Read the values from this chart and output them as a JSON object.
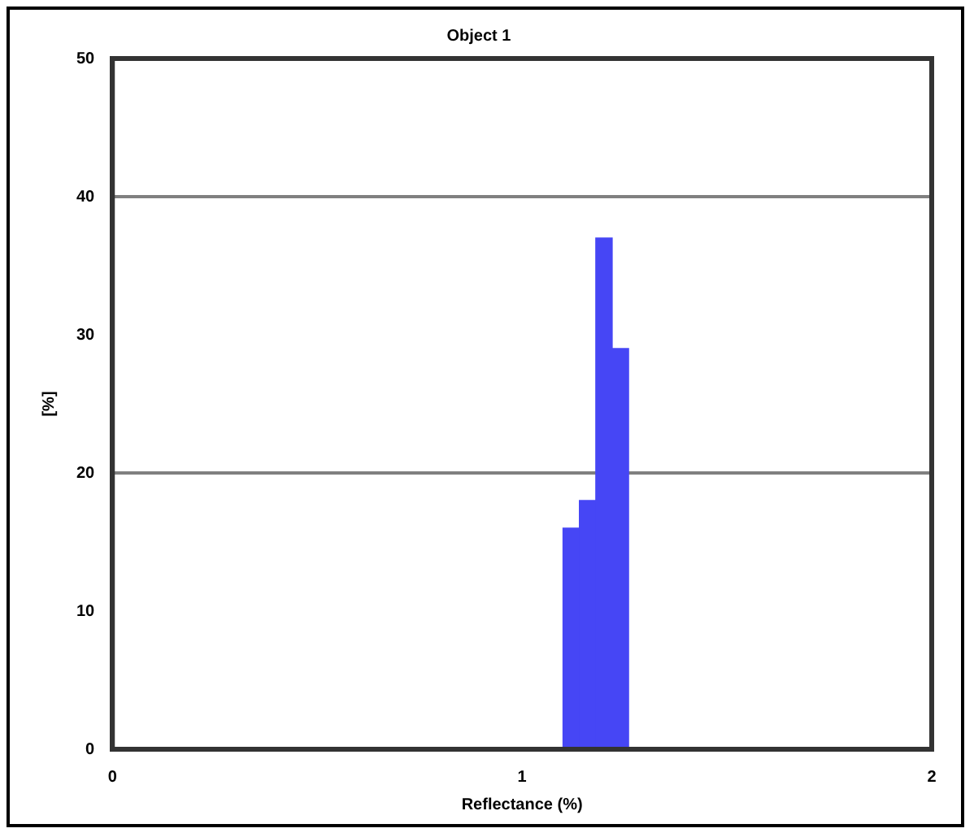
{
  "chart_data": {
    "type": "histogram",
    "title": "Object 1",
    "xlabel": "Reflectance (%)",
    "ylabel": "[%]",
    "bins": [
      1.1,
      1.14,
      1.18,
      1.22,
      1.26
    ],
    "values": [
      16,
      18,
      37,
      29
    ],
    "color": "#4646f5",
    "xlim": [
      0,
      2
    ],
    "xticks": [
      0,
      1,
      2
    ],
    "ylim": [
      0,
      50
    ],
    "yticks": [
      0,
      10,
      20,
      30,
      40,
      50
    ],
    "grid": false,
    "legend": false,
    "ref_lines": [
      {
        "axis": "y",
        "value": 20,
        "color": "#808080"
      },
      {
        "axis": "y",
        "value": 40,
        "color": "#808080"
      }
    ]
  }
}
